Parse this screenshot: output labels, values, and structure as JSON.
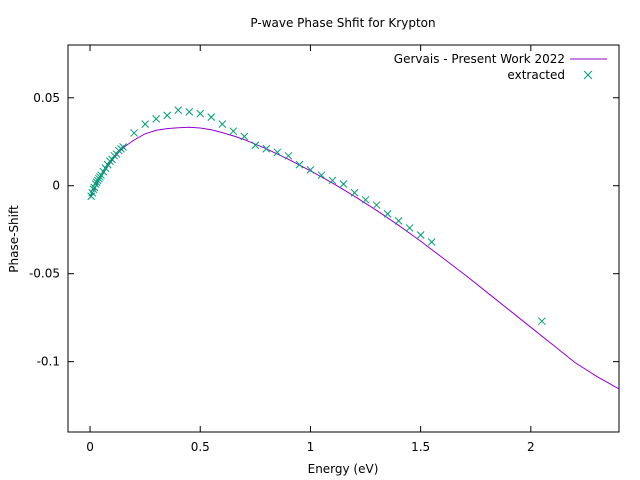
{
  "chart_data": {
    "type": "line",
    "title": "P-wave Phase Shfit for Krypton",
    "xlabel": "Energy (eV)",
    "ylabel": "Phase-Shift",
    "xlim": [
      -0.1,
      2.4
    ],
    "ylim": [
      -0.14,
      0.08
    ],
    "x_ticks": [
      0,
      0.5,
      1,
      1.5,
      2
    ],
    "x_tick_labels": [
      "0",
      "0.5",
      "1",
      "1.5",
      "2"
    ],
    "y_ticks": [
      -0.1,
      -0.05,
      0,
      0.05
    ],
    "y_tick_labels": [
      "-0.1",
      "-0.05",
      "0",
      "0.05"
    ],
    "grid": false,
    "legend_position": "top-right",
    "series": [
      {
        "name": "Gervais - Present Work 2022",
        "style": "line",
        "color": "#9400d3",
        "x": [
          0.0,
          0.02,
          0.04,
          0.06,
          0.08,
          0.1,
          0.13,
          0.16,
          0.2,
          0.25,
          0.3,
          0.35,
          0.4,
          0.45,
          0.5,
          0.55,
          0.6,
          0.65,
          0.7,
          0.8,
          0.9,
          1.0,
          1.1,
          1.2,
          1.3,
          1.4,
          1.5,
          1.6,
          1.7,
          1.8,
          1.9,
          2.0,
          2.1,
          2.2,
          2.3,
          2.4
        ],
        "y": [
          -0.007,
          -0.002,
          0.003,
          0.007,
          0.011,
          0.0145,
          0.019,
          0.0225,
          0.026,
          0.0295,
          0.0315,
          0.0325,
          0.033,
          0.0332,
          0.0328,
          0.0318,
          0.0302,
          0.0283,
          0.0262,
          0.021,
          0.015,
          0.0085,
          0.0015,
          -0.006,
          -0.014,
          -0.0225,
          -0.0315,
          -0.041,
          -0.0505,
          -0.0605,
          -0.0705,
          -0.0805,
          -0.0905,
          -0.1005,
          -0.1085,
          -0.1155
        ]
      },
      {
        "name": "extracted",
        "style": "points",
        "marker": "x",
        "color": "#009e73",
        "x": [
          0.005,
          0.01,
          0.015,
          0.02,
          0.025,
          0.03,
          0.035,
          0.04,
          0.045,
          0.05,
          0.06,
          0.07,
          0.08,
          0.09,
          0.1,
          0.11,
          0.12,
          0.13,
          0.14,
          0.15,
          0.2,
          0.25,
          0.3,
          0.35,
          0.4,
          0.45,
          0.5,
          0.55,
          0.6,
          0.65,
          0.7,
          0.75,
          0.8,
          0.85,
          0.9,
          0.95,
          1.0,
          1.05,
          1.1,
          1.15,
          1.2,
          1.25,
          1.3,
          1.35,
          1.4,
          1.45,
          1.5,
          1.55,
          2.05
        ],
        "y": [
          -0.006,
          -0.004,
          -0.002,
          -0.001,
          0.001,
          0.002,
          0.003,
          0.004,
          0.005,
          0.006,
          0.008,
          0.01,
          0.012,
          0.014,
          0.015,
          0.017,
          0.018,
          0.02,
          0.021,
          0.022,
          0.03,
          0.035,
          0.038,
          0.04,
          0.043,
          0.042,
          0.041,
          0.039,
          0.035,
          0.031,
          0.028,
          0.023,
          0.021,
          0.019,
          0.017,
          0.012,
          0.009,
          0.006,
          0.003,
          0.001,
          -0.004,
          -0.008,
          -0.011,
          -0.016,
          -0.02,
          -0.024,
          -0.028,
          -0.032,
          -0.077
        ]
      }
    ]
  }
}
